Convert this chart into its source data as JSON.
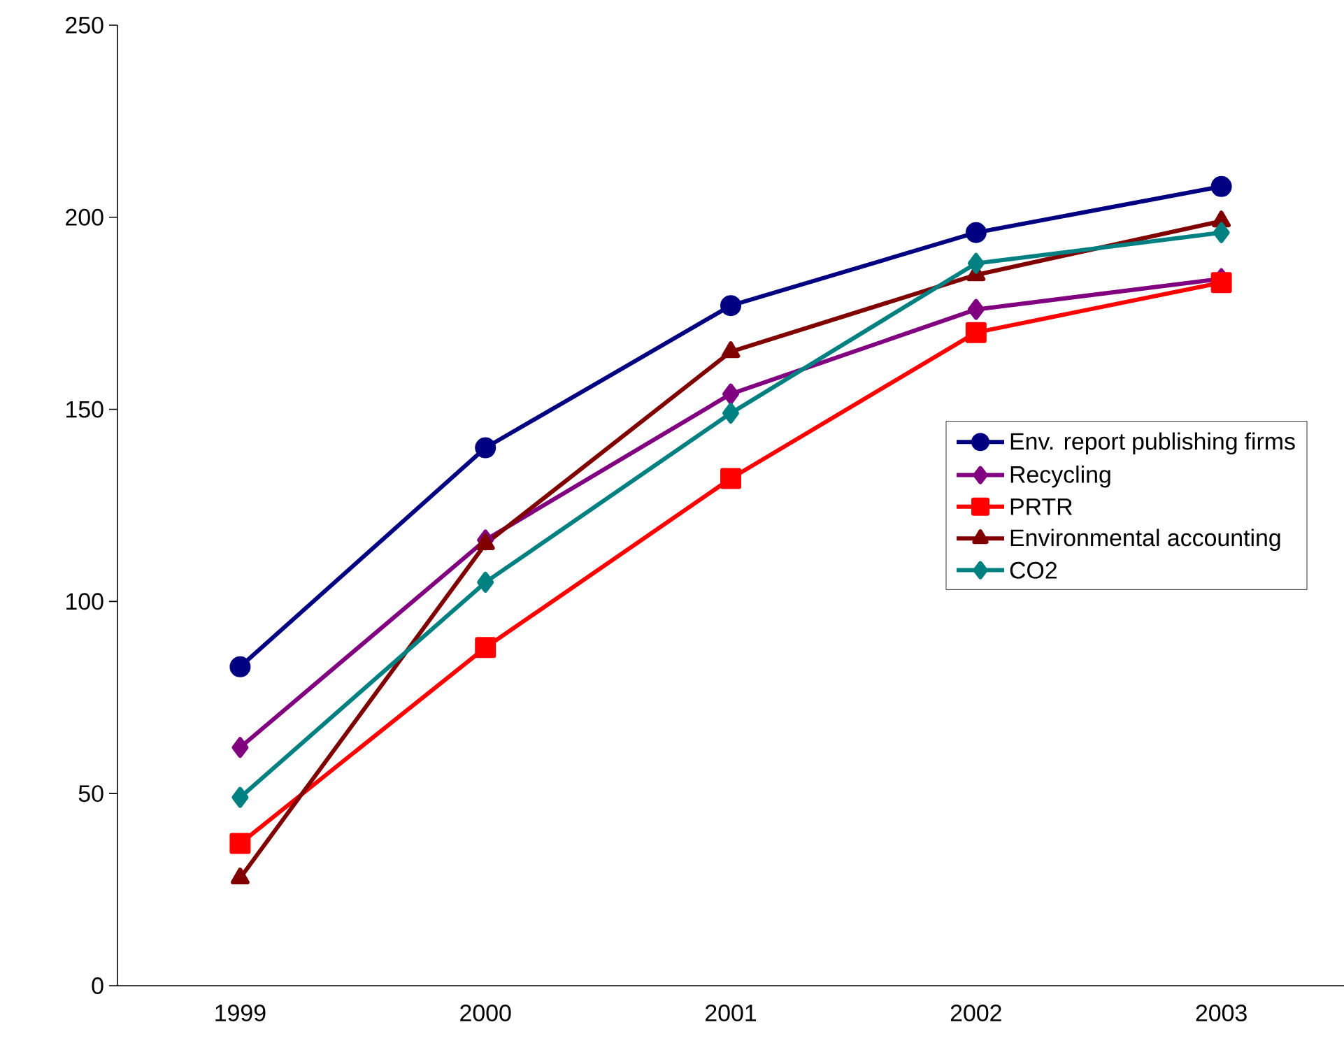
{
  "chart_data": {
    "type": "line",
    "categories": [
      "1999",
      "2000",
      "2001",
      "2002",
      "2003"
    ],
    "series": [
      {
        "name": "Env. report publishing firms",
        "color": "#000080",
        "marker": "circle",
        "values": [
          83,
          140,
          177,
          196,
          208
        ]
      },
      {
        "name": "Recycling",
        "color": "#800080",
        "marker": "diamond",
        "values": [
          62,
          116,
          154,
          176,
          184
        ]
      },
      {
        "name": "PRTR",
        "color": "#ff0000",
        "marker": "square",
        "values": [
          37,
          88,
          132,
          170,
          183
        ]
      },
      {
        "name": "Environmental accounting",
        "color": "#800000",
        "marker": "triangle",
        "values": [
          28,
          115,
          165,
          185,
          199
        ]
      },
      {
        "name": "CO2",
        "color": "#008080",
        "marker": "diamond",
        "values": [
          49,
          105,
          149,
          188,
          196
        ]
      }
    ],
    "ylim": [
      0,
      250
    ],
    "yticks": [
      0,
      50,
      100,
      150,
      200,
      250
    ],
    "grid": false,
    "legend": "right",
    "line_style": "solid"
  }
}
